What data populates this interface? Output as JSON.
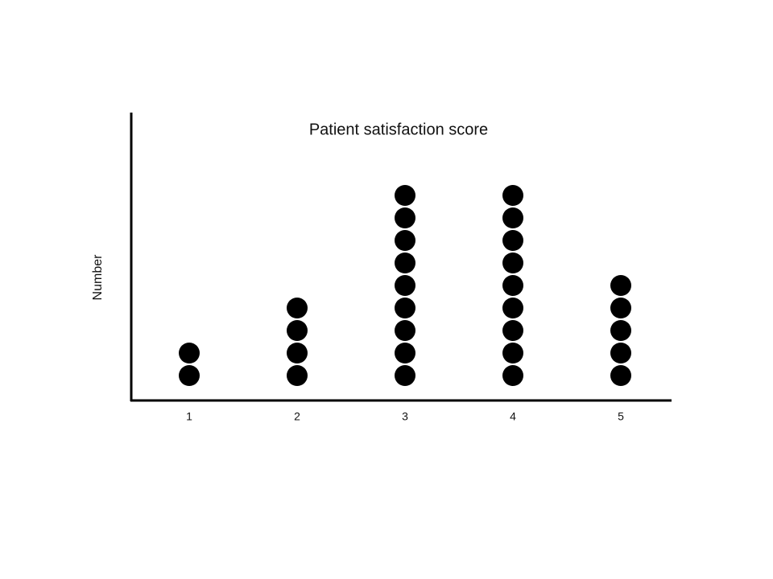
{
  "chart_data": {
    "type": "dot",
    "title": "Patient satisfaction score",
    "y_label": "Number",
    "categories": [
      "1",
      "2",
      "3",
      "4",
      "5"
    ],
    "values": [
      2,
      4,
      9,
      9,
      5
    ],
    "color": "#000000"
  }
}
